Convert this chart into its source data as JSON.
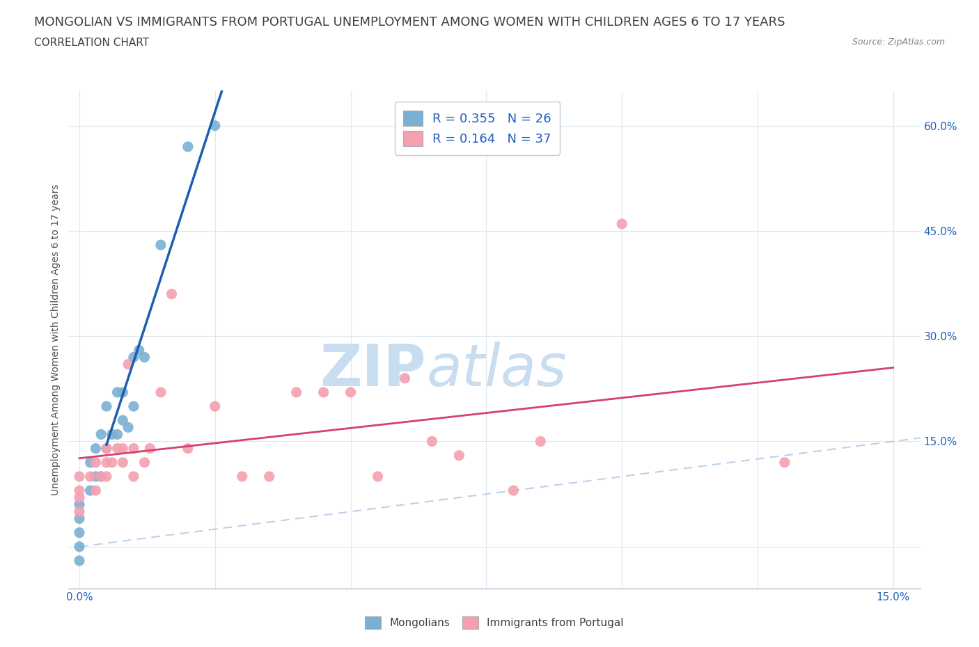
{
  "title_line1": "MONGOLIAN VS IMMIGRANTS FROM PORTUGAL UNEMPLOYMENT AMONG WOMEN WITH CHILDREN AGES 6 TO 17 YEARS",
  "title_line2": "CORRELATION CHART",
  "source": "Source: ZipAtlas.com",
  "ylabel": "Unemployment Among Women with Children Ages 6 to 17 years",
  "xlim": [
    -0.002,
    0.155
  ],
  "ylim": [
    -0.06,
    0.65
  ],
  "xticks": [
    0.0,
    0.025,
    0.05,
    0.075,
    0.1,
    0.125,
    0.15
  ],
  "ytick_positions": [
    0.0,
    0.15,
    0.3,
    0.45,
    0.6
  ],
  "mongolian_color": "#7bafd4",
  "portugal_color": "#f4a0b0",
  "mongolian_R": 0.355,
  "mongolian_N": 26,
  "portugal_R": 0.164,
  "portugal_N": 37,
  "trend_color_mongolian": "#1a5fb0",
  "trend_color_portugal": "#d44070",
  "diagonal_color": "#b0c8e8",
  "watermark_zip": "ZIP",
  "watermark_atlas": "atlas",
  "watermark_color_zip": "#c8ddf0",
  "watermark_color_atlas": "#c8ddf0",
  "legend_label_mongolian": "Mongolians",
  "legend_label_portugal": "Immigrants from Portugal",
  "mongolian_x": [
    0.0,
    0.0,
    0.0,
    0.0,
    0.0,
    0.002,
    0.002,
    0.003,
    0.003,
    0.004,
    0.004,
    0.005,
    0.005,
    0.006,
    0.007,
    0.007,
    0.008,
    0.008,
    0.009,
    0.01,
    0.01,
    0.011,
    0.012,
    0.015,
    0.02,
    0.025
  ],
  "mongolian_y": [
    -0.02,
    0.0,
    0.02,
    0.04,
    0.06,
    0.08,
    0.12,
    0.1,
    0.14,
    0.1,
    0.16,
    0.14,
    0.2,
    0.16,
    0.16,
    0.22,
    0.18,
    0.22,
    0.17,
    0.2,
    0.27,
    0.28,
    0.27,
    0.43,
    0.57,
    0.6
  ],
  "portugal_x": [
    0.0,
    0.0,
    0.0,
    0.0,
    0.002,
    0.003,
    0.003,
    0.004,
    0.005,
    0.005,
    0.005,
    0.006,
    0.007,
    0.008,
    0.008,
    0.009,
    0.01,
    0.01,
    0.012,
    0.013,
    0.015,
    0.017,
    0.02,
    0.025,
    0.03,
    0.035,
    0.04,
    0.045,
    0.05,
    0.055,
    0.06,
    0.065,
    0.07,
    0.08,
    0.085,
    0.1,
    0.13
  ],
  "portugal_y": [
    0.05,
    0.07,
    0.08,
    0.1,
    0.1,
    0.08,
    0.12,
    0.1,
    0.1,
    0.12,
    0.14,
    0.12,
    0.14,
    0.12,
    0.14,
    0.26,
    0.1,
    0.14,
    0.12,
    0.14,
    0.22,
    0.36,
    0.14,
    0.2,
    0.1,
    0.1,
    0.22,
    0.22,
    0.22,
    0.1,
    0.24,
    0.15,
    0.13,
    0.08,
    0.15,
    0.46,
    0.12
  ],
  "background_color": "#ffffff",
  "grid_color": "#dde8f0",
  "title_fontsize": 13,
  "subtitle_fontsize": 11,
  "axis_label_fontsize": 10,
  "tick_fontsize": 11,
  "watermark_fontsize": 60
}
